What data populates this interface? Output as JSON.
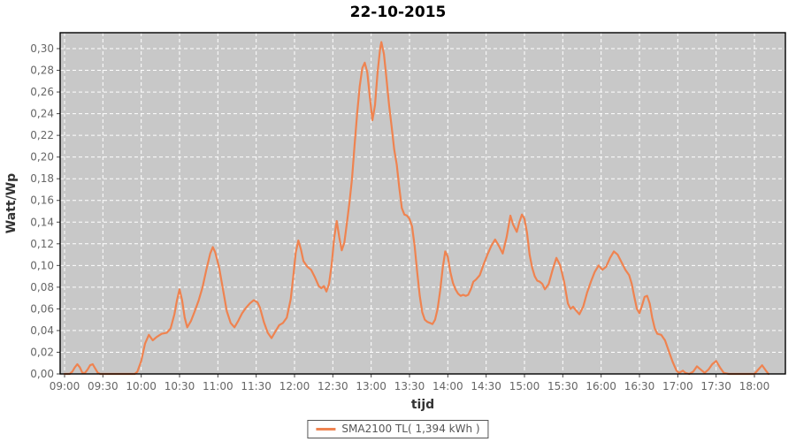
{
  "title": "22-10-2015",
  "colors": {
    "line": "#EF8350",
    "plot_bg": "#C8C8C8",
    "grid": "#FFFFFF",
    "axis_border": "#000000",
    "tick_text": "#666666",
    "axis_title_text": "#333333",
    "legend_border": "#555555"
  },
  "legend": {
    "label": "SMA2100 TL( 1,394 kWh )"
  },
  "chart_data": {
    "type": "line",
    "title": "22-10-2015",
    "xlabel": "tijd",
    "ylabel": "Watt/Wp",
    "grid": true,
    "legend_position": "bottom",
    "x_tick_labels": [
      "09:00",
      "09:30",
      "10:00",
      "10:30",
      "11:00",
      "11:30",
      "12:00",
      "12:30",
      "13:00",
      "13:30",
      "14:00",
      "14:30",
      "15:00",
      "15:30",
      "16:00",
      "16:30",
      "17:00",
      "17:30",
      "18:00"
    ],
    "y_tick_labels": [
      "0,00",
      "0,02",
      "0,04",
      "0,06",
      "0,08",
      "0,10",
      "0,12",
      "0,14",
      "0,16",
      "0,18",
      "0,20",
      "0,22",
      "0,24",
      "0,26",
      "0,28",
      "0,30"
    ],
    "y_tick_step": 0.02,
    "ylim": [
      0,
      0.315
    ],
    "xlim_minutes_from_0900": [
      -3.5,
      564
    ],
    "series": [
      {
        "name": "SMA2100 TL( 1,394 kWh )",
        "color": "#EF8350",
        "points_t_minutes_v_wattwp": [
          [
            0,
            0
          ],
          [
            4,
            0
          ],
          [
            6,
            0.002
          ],
          [
            8,
            0.006
          ],
          [
            10,
            0.009
          ],
          [
            12,
            0.006
          ],
          [
            14,
            0.001
          ],
          [
            16,
            0.001
          ],
          [
            18,
            0.004
          ],
          [
            20,
            0.008
          ],
          [
            22,
            0.009
          ],
          [
            24,
            0.005
          ],
          [
            26,
            0.001
          ],
          [
            28,
            0
          ],
          [
            32,
            0
          ],
          [
            36,
            0
          ],
          [
            40,
            0
          ],
          [
            44,
            0
          ],
          [
            48,
            0
          ],
          [
            52,
            0
          ],
          [
            55,
            0
          ],
          [
            57,
            0.002
          ],
          [
            60,
            0.012
          ],
          [
            63,
            0.028
          ],
          [
            66,
            0.036
          ],
          [
            69,
            0.031
          ],
          [
            72,
            0.034
          ],
          [
            76,
            0.037
          ],
          [
            80,
            0.038
          ],
          [
            83,
            0.042
          ],
          [
            86,
            0.055
          ],
          [
            88,
            0.068
          ],
          [
            90,
            0.078
          ],
          [
            92,
            0.068
          ],
          [
            94,
            0.052
          ],
          [
            96,
            0.043
          ],
          [
            99,
            0.049
          ],
          [
            102,
            0.058
          ],
          [
            105,
            0.068
          ],
          [
            108,
            0.08
          ],
          [
            111,
            0.096
          ],
          [
            114,
            0.111
          ],
          [
            116,
            0.117
          ],
          [
            118,
            0.112
          ],
          [
            121,
            0.098
          ],
          [
            124,
            0.078
          ],
          [
            127,
            0.058
          ],
          [
            130,
            0.047
          ],
          [
            133,
            0.043
          ],
          [
            136,
            0.049
          ],
          [
            139,
            0.056
          ],
          [
            142,
            0.061
          ],
          [
            145,
            0.065
          ],
          [
            148,
            0.068
          ],
          [
            151,
            0.066
          ],
          [
            153,
            0.061
          ],
          [
            156,
            0.048
          ],
          [
            159,
            0.038
          ],
          [
            162,
            0.033
          ],
          [
            165,
            0.039
          ],
          [
            168,
            0.045
          ],
          [
            171,
            0.047
          ],
          [
            174,
            0.052
          ],
          [
            177,
            0.069
          ],
          [
            179,
            0.09
          ],
          [
            181,
            0.112
          ],
          [
            183,
            0.123
          ],
          [
            185,
            0.115
          ],
          [
            187,
            0.104
          ],
          [
            190,
            0.099
          ],
          [
            193,
            0.096
          ],
          [
            196,
            0.089
          ],
          [
            199,
            0.081
          ],
          [
            201,
            0.079
          ],
          [
            203,
            0.081
          ],
          [
            205,
            0.076
          ],
          [
            207,
            0.083
          ],
          [
            209,
            0.1
          ],
          [
            211,
            0.125
          ],
          [
            213,
            0.141
          ],
          [
            215,
            0.126
          ],
          [
            217,
            0.114
          ],
          [
            219,
            0.121
          ],
          [
            221,
            0.139
          ],
          [
            223,
            0.158
          ],
          [
            225,
            0.18
          ],
          [
            227,
            0.211
          ],
          [
            229,
            0.24
          ],
          [
            231,
            0.265
          ],
          [
            233,
            0.282
          ],
          [
            235,
            0.287
          ],
          [
            237,
            0.278
          ],
          [
            239,
            0.255
          ],
          [
            241,
            0.234
          ],
          [
            243,
            0.248
          ],
          [
            245,
            0.278
          ],
          [
            247,
            0.3
          ],
          [
            248,
            0.306
          ],
          [
            250,
            0.295
          ],
          [
            252,
            0.272
          ],
          [
            254,
            0.248
          ],
          [
            256,
            0.228
          ],
          [
            258,
            0.207
          ],
          [
            260,
            0.193
          ],
          [
            262,
            0.172
          ],
          [
            264,
            0.153
          ],
          [
            266,
            0.147
          ],
          [
            268,
            0.146
          ],
          [
            270,
            0.143
          ],
          [
            272,
            0.136
          ],
          [
            274,
            0.118
          ],
          [
            276,
            0.094
          ],
          [
            278,
            0.072
          ],
          [
            280,
            0.057
          ],
          [
            282,
            0.05
          ],
          [
            284,
            0.048
          ],
          [
            286,
            0.047
          ],
          [
            288,
            0.046
          ],
          [
            290,
            0.05
          ],
          [
            292,
            0.06
          ],
          [
            294,
            0.077
          ],
          [
            296,
            0.098
          ],
          [
            298,
            0.113
          ],
          [
            300,
            0.108
          ],
          [
            302,
            0.094
          ],
          [
            304,
            0.084
          ],
          [
            306,
            0.078
          ],
          [
            308,
            0.074
          ],
          [
            310,
            0.072
          ],
          [
            312,
            0.073
          ],
          [
            314,
            0.072
          ],
          [
            316,
            0.073
          ],
          [
            318,
            0.078
          ],
          [
            320,
            0.085
          ],
          [
            322,
            0.087
          ],
          [
            325,
            0.091
          ],
          [
            328,
            0.101
          ],
          [
            331,
            0.11
          ],
          [
            334,
            0.118
          ],
          [
            337,
            0.124
          ],
          [
            340,
            0.118
          ],
          [
            343,
            0.111
          ],
          [
            346,
            0.126
          ],
          [
            349,
            0.146
          ],
          [
            351,
            0.138
          ],
          [
            354,
            0.131
          ],
          [
            356,
            0.14
          ],
          [
            358,
            0.147
          ],
          [
            360,
            0.143
          ],
          [
            362,
            0.13
          ],
          [
            364,
            0.11
          ],
          [
            366,
            0.098
          ],
          [
            368,
            0.09
          ],
          [
            370,
            0.086
          ],
          [
            372,
            0.085
          ],
          [
            374,
            0.083
          ],
          [
            376,
            0.078
          ],
          [
            379,
            0.083
          ],
          [
            382,
            0.096
          ],
          [
            385,
            0.107
          ],
          [
            388,
            0.1
          ],
          [
            391,
            0.085
          ],
          [
            394,
            0.065
          ],
          [
            396,
            0.06
          ],
          [
            398,
            0.062
          ],
          [
            400,
            0.059
          ],
          [
            403,
            0.055
          ],
          [
            406,
            0.062
          ],
          [
            409,
            0.075
          ],
          [
            412,
            0.085
          ],
          [
            415,
            0.094
          ],
          [
            418,
            0.1
          ],
          [
            421,
            0.096
          ],
          [
            424,
            0.099
          ],
          [
            427,
            0.107
          ],
          [
            430,
            0.113
          ],
          [
            433,
            0.11
          ],
          [
            436,
            0.103
          ],
          [
            439,
            0.096
          ],
          [
            442,
            0.091
          ],
          [
            444,
            0.083
          ],
          [
            446,
            0.071
          ],
          [
            448,
            0.06
          ],
          [
            450,
            0.056
          ],
          [
            452,
            0.063
          ],
          [
            454,
            0.071
          ],
          [
            456,
            0.072
          ],
          [
            458,
            0.065
          ],
          [
            460,
            0.052
          ],
          [
            462,
            0.042
          ],
          [
            464,
            0.037
          ],
          [
            467,
            0.036
          ],
          [
            470,
            0.031
          ],
          [
            473,
            0.021
          ],
          [
            476,
            0.011
          ],
          [
            479,
            0.003
          ],
          [
            481,
            0.001
          ],
          [
            484,
            0.003
          ],
          [
            486,
            0.001
          ],
          [
            489,
            0
          ],
          [
            492,
            0.002
          ],
          [
            495,
            0.007
          ],
          [
            498,
            0.004
          ],
          [
            501,
            0.001
          ],
          [
            504,
            0.004
          ],
          [
            507,
            0.009
          ],
          [
            510,
            0.012
          ],
          [
            513,
            0.006
          ],
          [
            516,
            0.001
          ],
          [
            520,
            0
          ],
          [
            525,
            0
          ],
          [
            530,
            0
          ],
          [
            535,
            0
          ],
          [
            540,
            0
          ],
          [
            543,
            0.004
          ],
          [
            546,
            0.008
          ],
          [
            549,
            0.003
          ],
          [
            551,
            0
          ]
        ]
      }
    ]
  }
}
